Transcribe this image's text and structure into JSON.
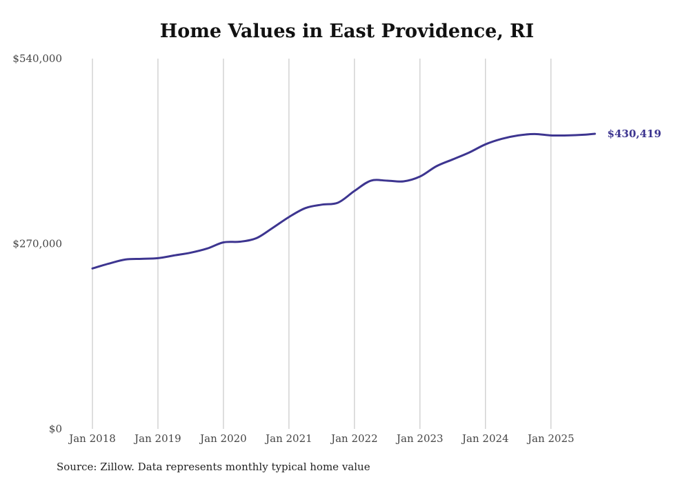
{
  "chart_data": {
    "type": "line",
    "title": "Home Values in East Providence, RI",
    "xlabel": "",
    "ylabel": "",
    "ylim": [
      0,
      540000
    ],
    "y_ticks": [
      0,
      270000,
      540000
    ],
    "y_tick_labels": [
      "$0",
      "$270,000",
      "$540,000"
    ],
    "x_range": [
      2018.0,
      2025.75
    ],
    "x_ticks": [
      2018,
      2019,
      2020,
      2021,
      2022,
      2023,
      2024,
      2025
    ],
    "x_tick_labels": [
      "Jan 2018",
      "Jan 2019",
      "Jan 2020",
      "Jan 2021",
      "Jan 2022",
      "Jan 2023",
      "Jan 2024",
      "Jan 2025"
    ],
    "grid": "vertical",
    "line_color": "#3d3590",
    "series": [
      {
        "name": "Typical home value",
        "x": [
          2018.0,
          2018.25,
          2018.5,
          2018.75,
          2019.0,
          2019.25,
          2019.5,
          2019.75,
          2020.0,
          2020.25,
          2020.5,
          2020.75,
          2021.0,
          2021.25,
          2021.5,
          2021.75,
          2022.0,
          2022.25,
          2022.5,
          2022.75,
          2023.0,
          2023.25,
          2023.5,
          2023.75,
          2024.0,
          2024.25,
          2024.5,
          2024.75,
          2025.0,
          2025.25,
          2025.5,
          2025.67
        ],
        "values": [
          234000,
          241000,
          247000,
          248000,
          249000,
          253000,
          257000,
          263000,
          272000,
          273000,
          278000,
          293000,
          309000,
          322000,
          327000,
          330000,
          347000,
          362000,
          362000,
          361000,
          368000,
          383000,
          393000,
          403000,
          415000,
          423000,
          428000,
          430000,
          428000,
          428000,
          429000,
          430419
        ]
      }
    ],
    "end_label": "$430,419"
  },
  "footer": {
    "source": "Source: Zillow. Data represents monthly typical home value"
  }
}
